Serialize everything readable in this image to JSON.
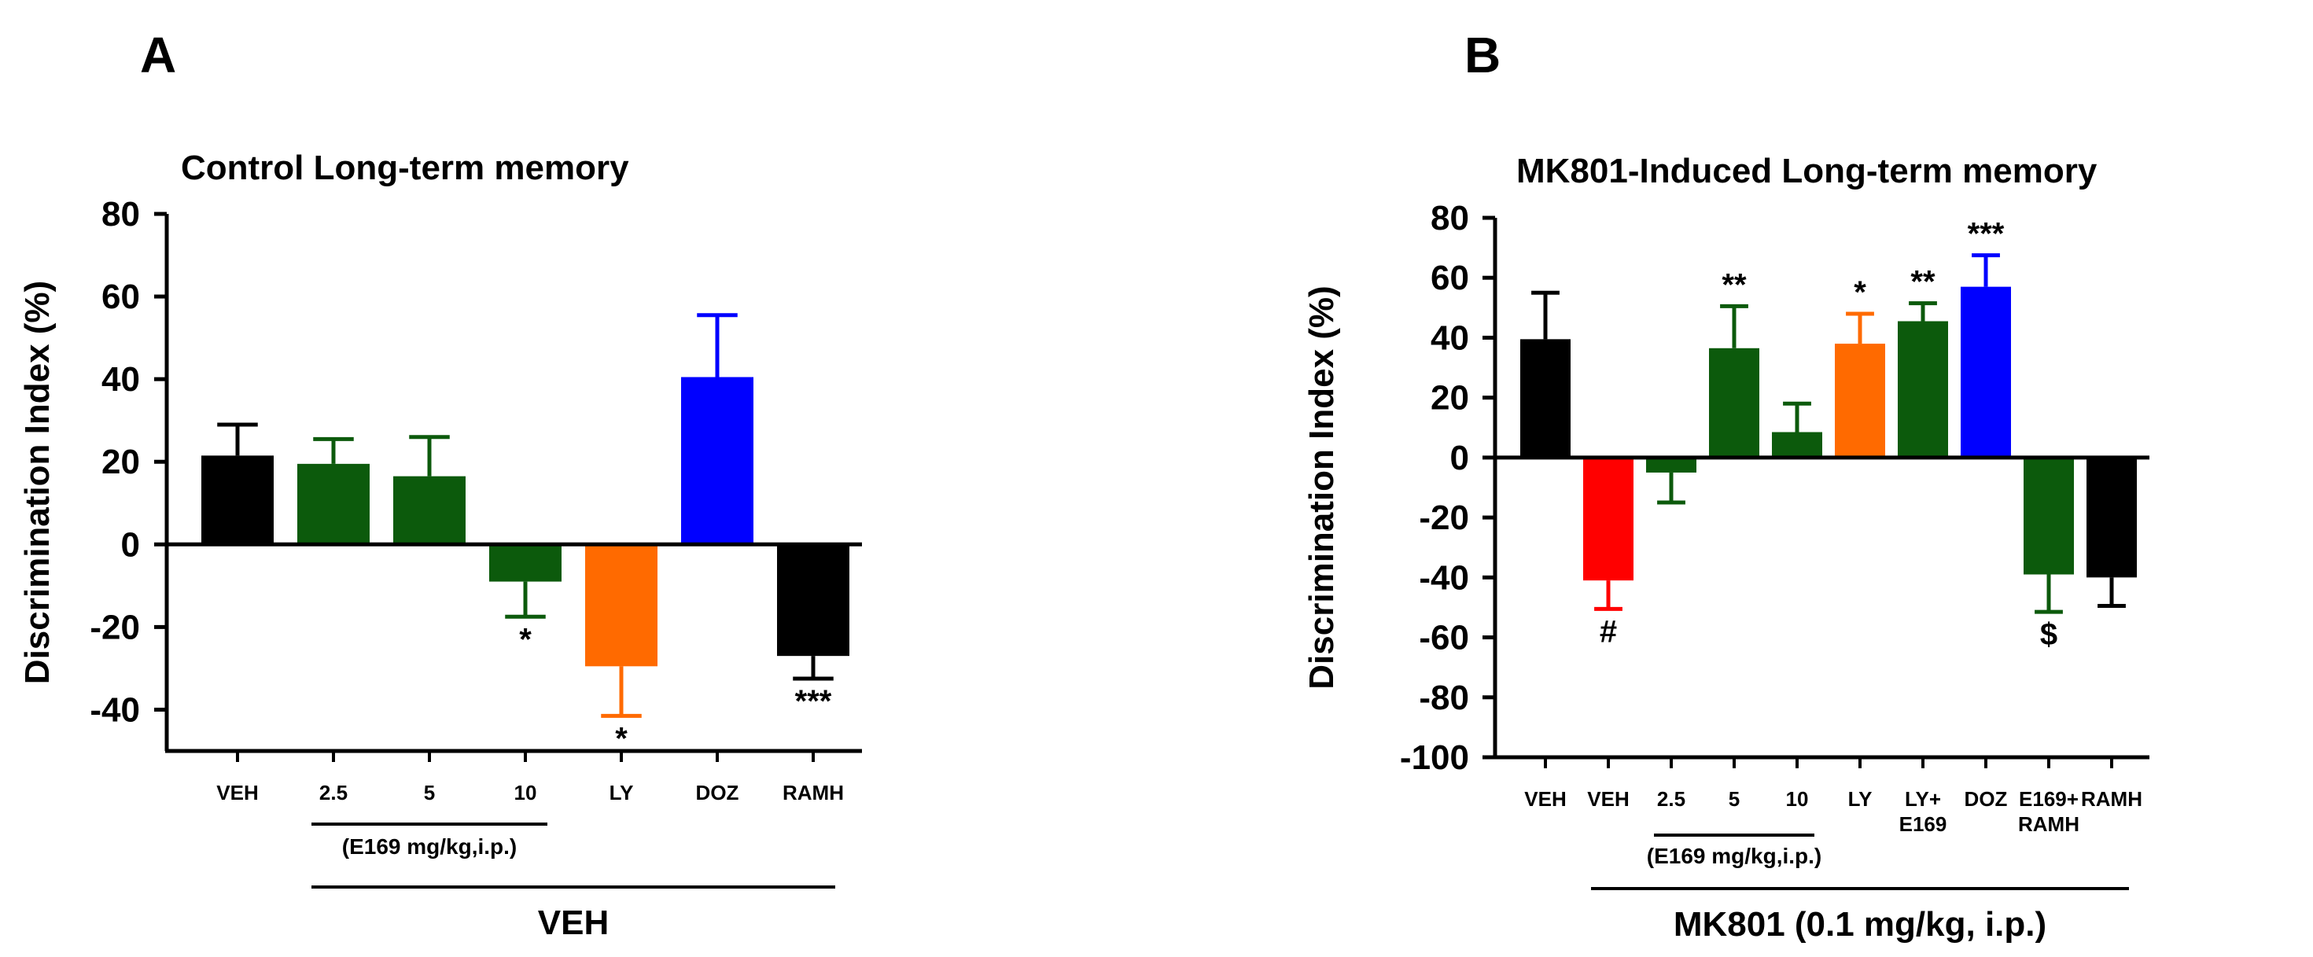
{
  "colors": {
    "black": "#000000",
    "green": "#0c5a0c",
    "blue": "#0000ff",
    "orange": "#ff6a00",
    "red": "#ff0000"
  },
  "chart_data": [
    {
      "type": "bar",
      "panel": "A",
      "title": "Control Long-term memory",
      "ylabel": "Discrimination Index (%)",
      "xlabel": "",
      "ylim": [
        -50,
        80
      ],
      "yticks": [
        -40,
        -20,
        0,
        20,
        40,
        60,
        80
      ],
      "categories": [
        "VEH",
        "2.5",
        "5",
        "10",
        "LY",
        "DOZ",
        "RAMH"
      ],
      "values": [
        21.5,
        19.5,
        16.5,
        -9,
        -29.5,
        40.5,
        -27
      ],
      "errors": [
        7.5,
        6,
        9.5,
        8.5,
        12,
        15,
        5.5
      ],
      "bar_colors": [
        "black",
        "green",
        "green",
        "green",
        "orange",
        "blue",
        "black"
      ],
      "significance": [
        "",
        "",
        "",
        "*",
        "*",
        "",
        "***"
      ],
      "group_labels": [
        {
          "text": "(E169 mg/kg,i.p.)",
          "from": 1,
          "to": 3,
          "level": 1
        },
        {
          "text": "VEH",
          "from": 1,
          "to": 6,
          "level": 2
        }
      ]
    },
    {
      "type": "bar",
      "panel": "B",
      "title": "MK801-Induced Long-term memory",
      "ylabel": "Discrimination Index (%)",
      "xlabel": "",
      "ylim": [
        -100,
        80
      ],
      "yticks": [
        -100,
        -80,
        -60,
        -40,
        -20,
        0,
        20,
        40,
        60,
        80
      ],
      "categories": [
        "VEH",
        "VEH",
        "2.5",
        "5",
        "10",
        "LY",
        "LY+\nE169",
        "DOZ",
        "E169+\nRAMH",
        "RAMH"
      ],
      "values": [
        39.5,
        -41,
        -5,
        36.5,
        8.5,
        38,
        45.5,
        57,
        -39,
        -40
      ],
      "errors": [
        15.5,
        9.5,
        10,
        14,
        9.5,
        10,
        6,
        10.5,
        12.5,
        9.5
      ],
      "bar_colors": [
        "black",
        "red",
        "green",
        "green",
        "green",
        "orange",
        "green",
        "blue",
        "green",
        "black"
      ],
      "significance": [
        "",
        "#",
        "",
        "**",
        "",
        "*",
        "**",
        "***",
        "$",
        ""
      ],
      "group_labels": [
        {
          "text": "(E169 mg/kg,i.p.)",
          "from": 2,
          "to": 4,
          "level": 1
        },
        {
          "text": "MK801 (0.1 mg/kg, i.p.)",
          "from": 1,
          "to": 9,
          "level": 2
        }
      ]
    }
  ]
}
